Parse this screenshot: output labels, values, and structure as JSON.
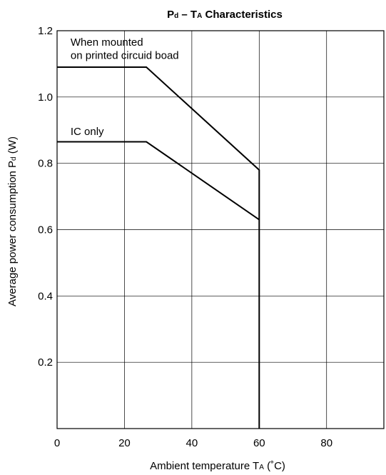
{
  "chart_data": {
    "type": "line",
    "title": {
      "main1": "P",
      "sub1": "d",
      "main2": " – T",
      "sub2": "A",
      "main3": " Characteristics"
    },
    "xlabel": {
      "main": "Ambient temperature T",
      "sub": "A",
      "suffix": " (˚C)"
    },
    "ylabel": {
      "main": "Average power consumption P",
      "sub": "d",
      "suffix": " (W)"
    },
    "xlim": [
      0,
      97
    ],
    "ylim": [
      0,
      1.2
    ],
    "xticks": [
      {
        "value": 0,
        "label": "0"
      },
      {
        "value": 20,
        "label": "20"
      },
      {
        "value": 40,
        "label": "40"
      },
      {
        "value": 60,
        "label": "60"
      },
      {
        "value": 80,
        "label": "80"
      }
    ],
    "yticks": [
      {
        "value": 0.2,
        "label": "0.2"
      },
      {
        "value": 0.4,
        "label": "0.4"
      },
      {
        "value": 0.6,
        "label": "0.6"
      },
      {
        "value": 0.8,
        "label": "0.8"
      },
      {
        "value": 1.0,
        "label": "1.0"
      },
      {
        "value": 1.2,
        "label": "1.2"
      }
    ],
    "grid": true,
    "series": [
      {
        "name": "When mounted on printed circuid boad",
        "color": "#000000",
        "x": [
          0,
          26.5,
          60,
          60
        ],
        "y": [
          1.09,
          1.09,
          0.78,
          0
        ]
      },
      {
        "name": "IC only",
        "color": "#000000",
        "x": [
          0,
          26.5,
          60
        ],
        "y": [
          0.865,
          0.865,
          0.63
        ]
      }
    ],
    "annotations": [
      {
        "id": "annotation-mounted-line1",
        "text": "When mounted",
        "x": 4,
        "y": 1.155
      },
      {
        "id": "annotation-mounted-line2",
        "text": "on printed circuid boad",
        "x": 4,
        "y": 1.115
      },
      {
        "id": "annotation-ic-only",
        "text": "IC only",
        "x": 4,
        "y": 0.885
      }
    ]
  }
}
